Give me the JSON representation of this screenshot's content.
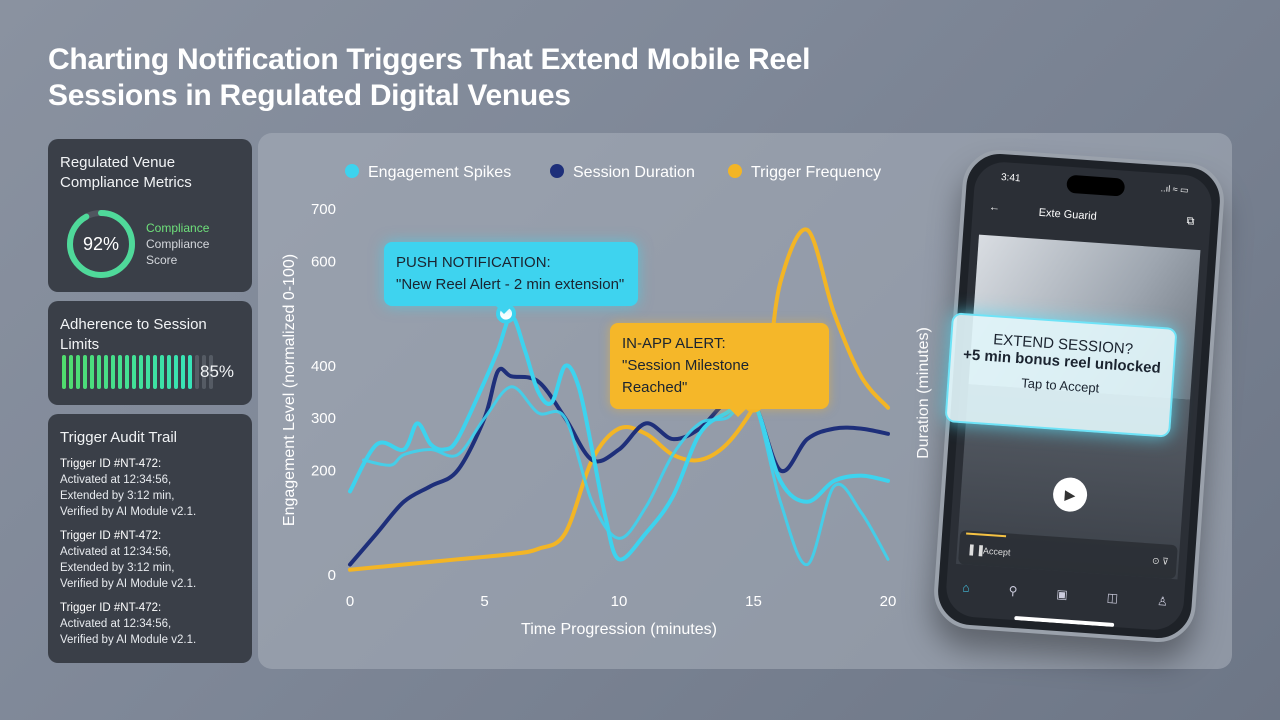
{
  "title": {
    "line1": "Charting Notification Triggers That Extend Mobile Reel",
    "line2": "Sessions in Regulated Digital Venues"
  },
  "compliance_card": {
    "title_line1": "Regulated Venue",
    "title_line2": "Compliance Metrics",
    "value": "92%",
    "value_fraction": 0.92,
    "label1": "Compliance",
    "label2": "Compliance",
    "label3": "Score",
    "accent": "#4fd99a"
  },
  "adherence_card": {
    "title_line1": "Adherence to Session",
    "title_line2": "Limits",
    "value": "85%",
    "value_fraction": 0.85
  },
  "audit_card": {
    "title": "Trigger Audit Trail",
    "entries": [
      {
        "id": "Trigger ID #NT-472:",
        "lines": [
          "Activated at 12:34:56,",
          "Extended by 3:12 min,",
          "Verified by AI Module v2.1."
        ]
      },
      {
        "id": "Trigger ID #NT-472:",
        "lines": [
          "Activated at 12:34:56,",
          "Extended by 3:12 min,",
          "Verified by AI Module v2.1."
        ]
      },
      {
        "id": "Trigger ID #NT-472:",
        "lines": [
          "Activated at 12:34:56,",
          "Verified by AI Module v2.1."
        ]
      }
    ]
  },
  "callouts": {
    "push_title": "PUSH NOTIFICATION:",
    "push_text": "\"New Reel Alert - 2 min extension\"",
    "inapp_title": "IN-APP ALERT:",
    "inapp_text": "\"Session Milestone Reached\""
  },
  "phone": {
    "time": "3:41",
    "status": "..ıl ≈ ▭",
    "back_icon": "←",
    "app_name": "Exte Guarid",
    "share_icon": "⧉",
    "play_icon": "▶",
    "pause_icon": "❚❚",
    "player_label": "Accept",
    "player_controls": "⊙ ⊽",
    "nav_icons": [
      "⌂",
      "⚲",
      "▣",
      "◫",
      "♙"
    ],
    "toast_title": "EXTEND SESSION?",
    "toast_body": "+5 min bonus reel unlocked",
    "toast_action": "Tap to Accept"
  },
  "chart_data": {
    "type": "line",
    "title": "",
    "xlabel": "Time Progression (minutes)",
    "ylabel": "Engagement Level (normalized 0-100)",
    "y2label": "Duration (minutes)",
    "xlim": [
      0,
      20
    ],
    "ylim": [
      0,
      700
    ],
    "xticks": [
      0,
      5,
      10,
      15,
      20
    ],
    "yticks": [
      0,
      200,
      300,
      400,
      600,
      700
    ],
    "ytick_labels": [
      "0",
      "200",
      "300",
      "400",
      "600",
      "700"
    ],
    "legend": "top",
    "grid": false,
    "series": [
      {
        "name": "Engagement Spikes",
        "color": "#3dd3ee",
        "x": [
          0,
          1,
          2,
          2.5,
          3,
          3.5,
          4,
          5,
          5.5,
          6,
          6.5,
          7,
          7.5,
          8,
          8.5,
          9,
          9.5,
          10,
          11,
          12,
          13,
          14,
          15,
          16,
          17,
          18,
          19,
          20
        ],
        "y": [
          160,
          250,
          240,
          290,
          250,
          240,
          260,
          370,
          430,
          495,
          430,
          350,
          330,
          400,
          360,
          240,
          110,
          30,
          80,
          150,
          270,
          310,
          330,
          180,
          140,
          180,
          190,
          180
        ]
      },
      {
        "name": "Engagement Spikes 2",
        "color": "#3dd3ee",
        "x": [
          0.5,
          1.5,
          2,
          3,
          4,
          5,
          6,
          7,
          8,
          9,
          10,
          11,
          12,
          13,
          14,
          15,
          16,
          17,
          18,
          19,
          20
        ],
        "y": [
          220,
          210,
          230,
          240,
          230,
          300,
          360,
          310,
          300,
          140,
          70,
          130,
          230,
          290,
          300,
          330,
          140,
          20,
          170,
          120,
          30
        ]
      },
      {
        "name": "Session Duration",
        "color": "#1e2f7a",
        "x": [
          0,
          1,
          2,
          3,
          4,
          5,
          5.5,
          6,
          7,
          8,
          9,
          10,
          11,
          12,
          13,
          14,
          15,
          16,
          17,
          18,
          19,
          20
        ],
        "y": [
          20,
          80,
          140,
          170,
          200,
          300,
          390,
          380,
          370,
          300,
          220,
          240,
          290,
          260,
          280,
          330,
          330,
          200,
          260,
          280,
          280,
          270
        ]
      },
      {
        "name": "Trigger Frequency",
        "color": "#f3b525",
        "x": [
          0,
          2,
          4,
          6,
          7,
          8,
          9,
          10,
          11,
          12,
          13,
          14,
          15,
          15.5,
          16,
          17,
          18,
          19,
          20
        ],
        "y": [
          10,
          20,
          30,
          40,
          50,
          80,
          220,
          280,
          270,
          230,
          220,
          250,
          320,
          380,
          560,
          660,
          500,
          380,
          320
        ]
      }
    ],
    "markers": [
      {
        "series": "Engagement Spikes",
        "x": 5.8,
        "y": 500,
        "color": "#3dd3ee"
      },
      {
        "series": "Trigger Frequency",
        "x": 15,
        "y": 330,
        "color": "#f3b525"
      }
    ],
    "annotations": [
      "PUSH NOTIFICATION:",
      "IN-APP ALERT:"
    ]
  }
}
